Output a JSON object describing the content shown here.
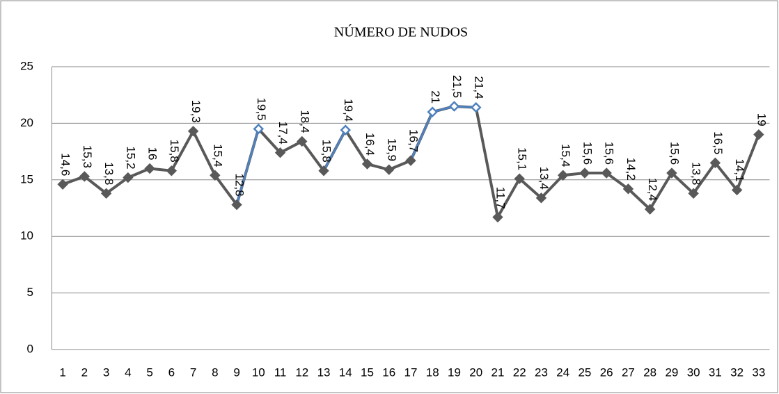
{
  "chart_data": {
    "type": "line",
    "title": "NÚMERO DE NUDOS",
    "categories": [
      "1",
      "2",
      "3",
      "4",
      "5",
      "6",
      "7",
      "8",
      "9",
      "10",
      "11",
      "12",
      "13",
      "14",
      "15",
      "16",
      "17",
      "18",
      "19",
      "20",
      "21",
      "22",
      "23",
      "24",
      "25",
      "26",
      "27",
      "28",
      "29",
      "30",
      "31",
      "32",
      "33"
    ],
    "series": [
      {
        "color": "#595959",
        "values": [
          14.6,
          15.3,
          13.8,
          15.2,
          16,
          15.8,
          19.3,
          15.4,
          12.8,
          19.5,
          17.4,
          18.4,
          15.8,
          19.4,
          16.4,
          15.9,
          16.7,
          21,
          21.5,
          21.4,
          11.7,
          15.1,
          13.4,
          15.4,
          15.6,
          15.6,
          14.2,
          12.4,
          15.6,
          13.8,
          16.5,
          14.1,
          19
        ],
        "value_labels": [
          "14,6",
          "15,3",
          "13,8",
          "15,2",
          "16",
          "15,8",
          "19,3",
          "15,4",
          "12,8",
          "19,5",
          "17,4",
          "18,4",
          "15,8",
          "19,4",
          "16,4",
          "15,9",
          "16,7",
          "21",
          "21,5",
          "21,4",
          "11,7",
          "15,1",
          "13,4",
          "15,4",
          "15,6",
          "15,6",
          "14,2",
          "12,4",
          "15,6",
          "13,8",
          "16,5",
          "14,1",
          "19"
        ],
        "point_colors": [
          "#595959",
          "#595959",
          "#595959",
          "#595959",
          "#595959",
          "#595959",
          "#595959",
          "#595959",
          "#595959",
          "#4f81bd",
          "#595959",
          "#595959",
          "#595959",
          "#4f81bd",
          "#595959",
          "#595959",
          "#595959",
          "#4f81bd",
          "#4f81bd",
          "#4f81bd",
          "#595959",
          "#595959",
          "#595959",
          "#595959",
          "#595959",
          "#595959",
          "#595959",
          "#595959",
          "#595959",
          "#595959",
          "#595959",
          "#595959",
          "#595959"
        ]
      }
    ],
    "ylim": [
      0,
      25
    ],
    "yticks": [
      0,
      5,
      10,
      15,
      20,
      25
    ],
    "grid": true
  }
}
